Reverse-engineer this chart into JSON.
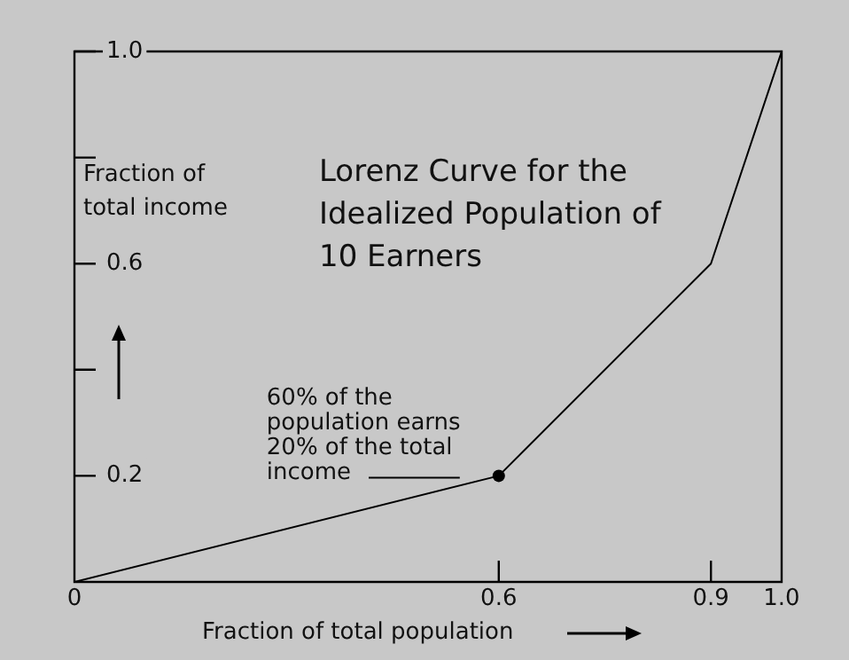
{
  "chart_data": {
    "type": "line",
    "title": "Lorenz Curve for the Idealized Population of 10 Earners",
    "xlabel": "Fraction of total population",
    "ylabel": "Fraction of total income",
    "x": [
      0,
      0.6,
      0.9,
      1
    ],
    "series": [
      {
        "color": "#000000",
        "values": [
          0,
          0.2,
          0.6,
          1
        ]
      }
    ],
    "xlim": [
      0,
      1
    ],
    "ylim": [
      0,
      1
    ],
    "xticks": [
      {
        "value": 0,
        "label": "0"
      },
      0.6,
      0.9,
      {
        "value": 1,
        "label": "1.0"
      }
    ],
    "yticks": [
      0.2,
      {
        "value": 0.4,
        "label": null
      },
      0.6,
      {
        "value": 0.8,
        "label": null
      },
      {
        "value": 1,
        "label": "1.0"
      }
    ],
    "annotations": [
      {
        "text": "60% of the population earns 20% of the total income",
        "x": 0.6,
        "y": 0.2
      }
    ],
    "grid": false,
    "legend": false,
    "marker": "none",
    "line_style": "solid"
  }
}
